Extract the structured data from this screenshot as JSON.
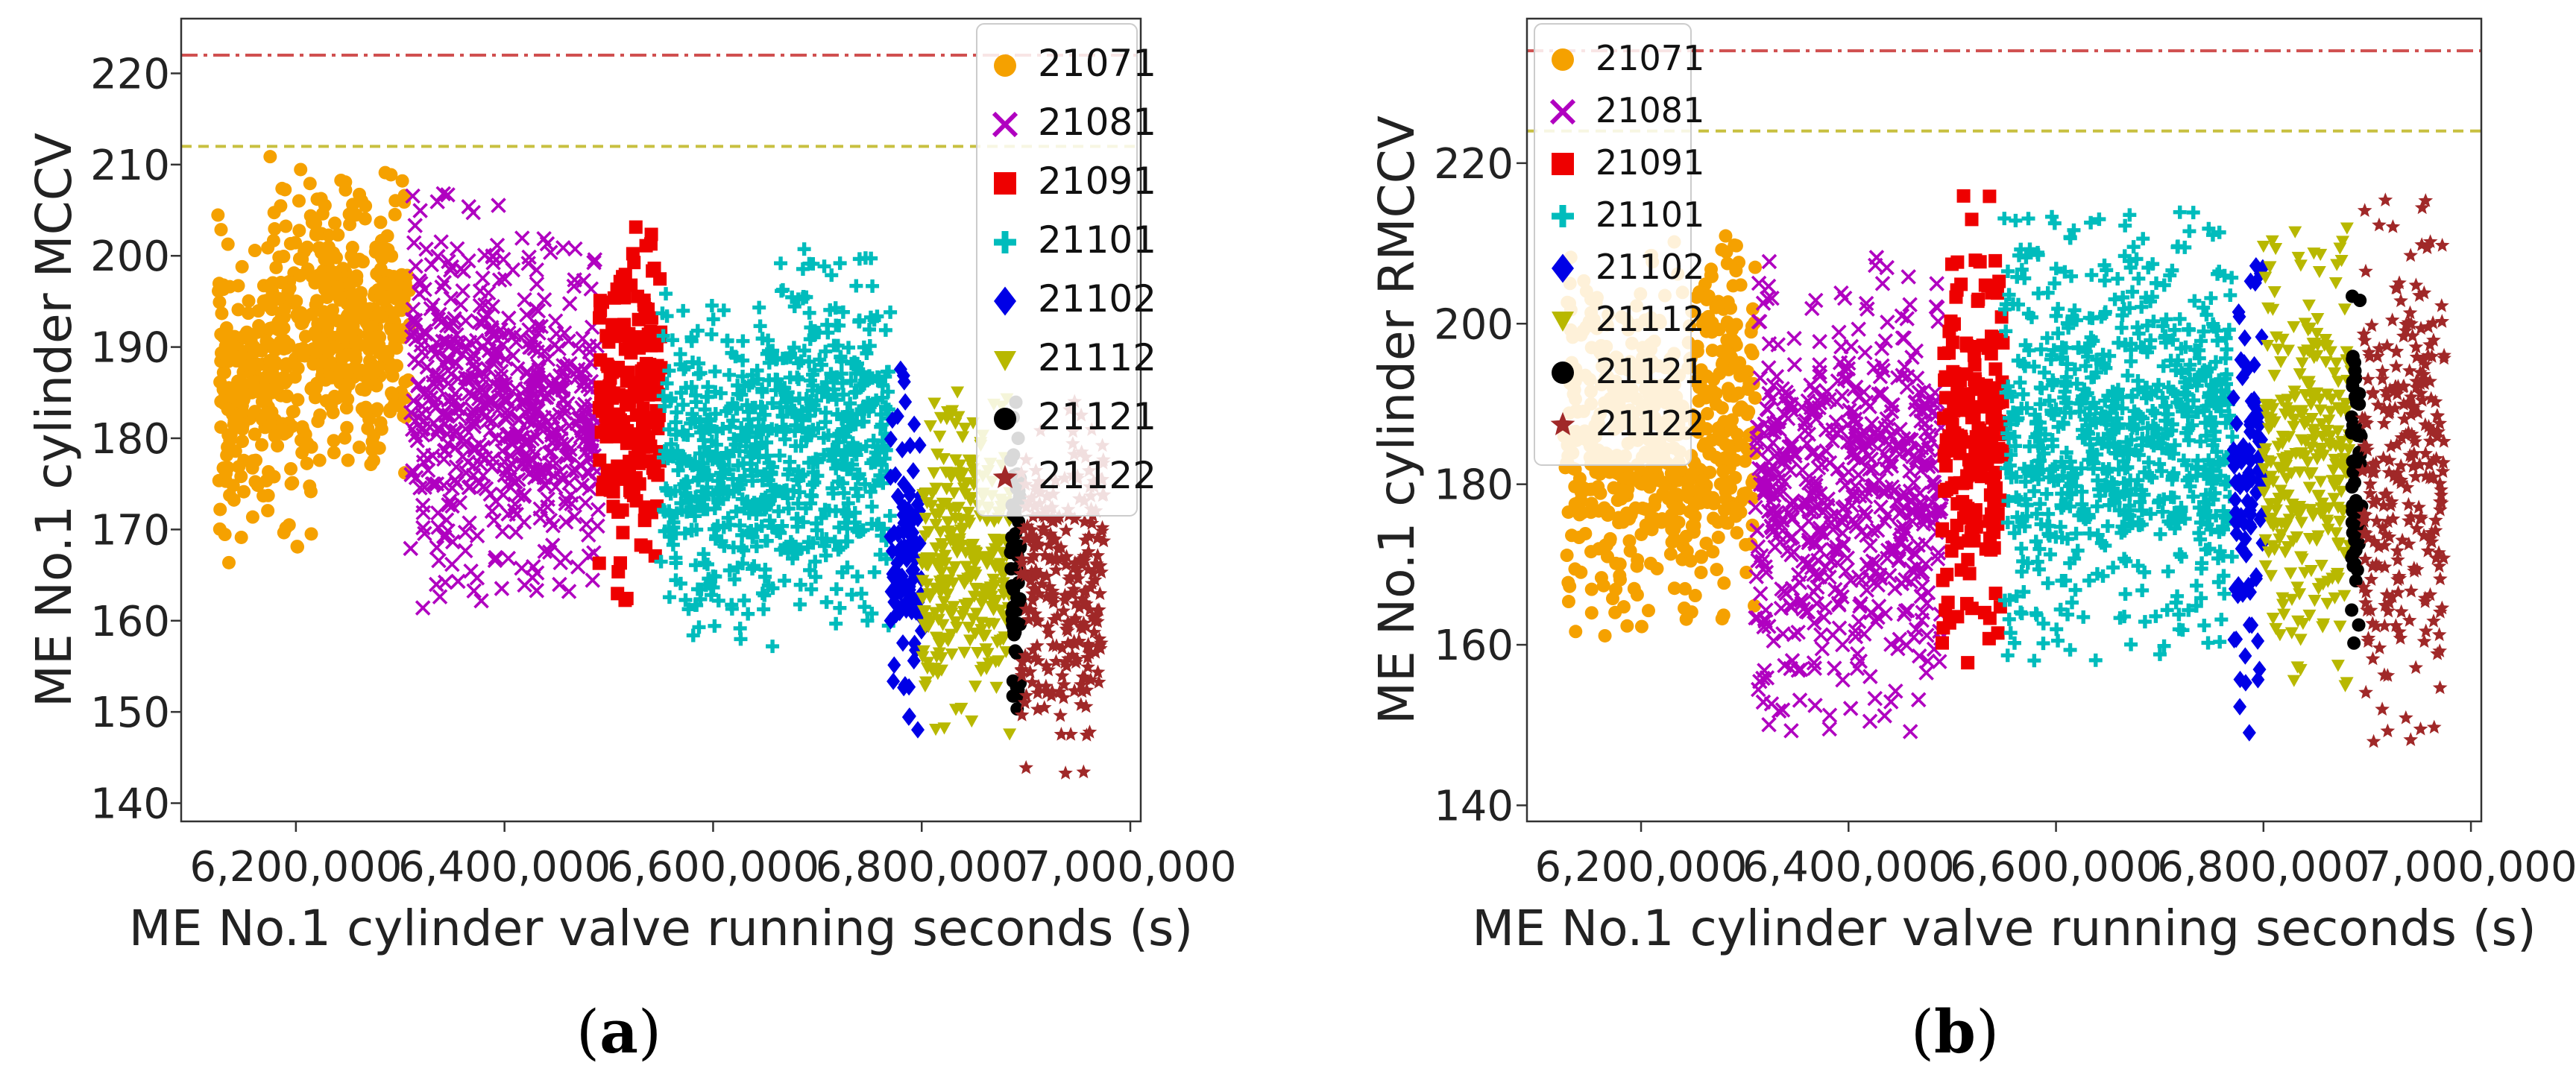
{
  "colors": {
    "21071": "#f5a100",
    "21081": "#b000c0",
    "21091": "#ee0000",
    "21101": "#00bcbc",
    "21102": "#0000e6",
    "21112": "#b8b800",
    "21121": "#000000",
    "21122": "#a02828",
    "red_line": "#d05050",
    "yellow_line": "#c8c040"
  },
  "chart_data": [
    {
      "type": "scatter",
      "panel": "a",
      "caption_open": "(",
      "caption_letter": "a",
      "caption_close": ")",
      "xlabel": "ME No.1 cylinder valve running seconds (s)",
      "ylabel": "ME No.1 cylinder MCCV",
      "xlim": [
        6090000,
        7010000
      ],
      "ylim": [
        138,
        226
      ],
      "x_ticks": [
        6200000,
        6400000,
        6600000,
        6800000,
        7000000
      ],
      "x_tick_labels": [
        "6,200,000",
        "6,400,000",
        "6,600,000",
        "6,800,000",
        "7,000,000"
      ],
      "y_ticks": [
        140,
        150,
        160,
        170,
        180,
        190,
        200,
        210,
        220
      ],
      "y_tick_labels": [
        "140",
        "150",
        "160",
        "170",
        "180",
        "190",
        "200",
        "210",
        "220"
      ],
      "legend_position": "top-right",
      "reference_lines": [
        {
          "style": "dash-dot",
          "color_key": "red_line",
          "y": 222
        },
        {
          "style": "dashed",
          "color_key": "yellow_line",
          "y": 212
        }
      ],
      "series": [
        {
          "name": "21071",
          "marker": "circle",
          "x_range": [
            6125000,
            6310000
          ],
          "segments": [
            [
              6125000,
              6175000,
              166,
              205
            ],
            [
              6175000,
              6215000,
              167,
              212
            ],
            [
              6215000,
              6310000,
              176,
              210
            ]
          ]
        },
        {
          "name": "21081",
          "marker": "x",
          "x_range": [
            6310000,
            6490000
          ],
          "segments": [
            [
              6310000,
              6400000,
              161,
              207
            ],
            [
              6400000,
              6490000,
              163,
              202
            ]
          ]
        },
        {
          "name": "21091",
          "marker": "square",
          "x_range": [
            6490000,
            6550000
          ],
          "segments": [
            [
              6490000,
              6550000,
              162,
              206
            ]
          ]
        },
        {
          "name": "21101",
          "marker": "plus",
          "x_range": [
            6550000,
            6770000
          ],
          "segments": [
            [
              6550000,
              6660000,
              157,
              196
            ],
            [
              6660000,
              6770000,
              159,
              201
            ]
          ]
        },
        {
          "name": "21102",
          "marker": "diamond",
          "x_range": [
            6770000,
            6800000
          ],
          "segments": [
            [
              6770000,
              6800000,
              148,
              188
            ]
          ]
        },
        {
          "name": "21112",
          "marker": "triangle-down",
          "x_range": [
            6800000,
            6885000
          ],
          "segments": [
            [
              6800000,
              6885000,
              147,
              186
            ]
          ]
        },
        {
          "name": "21121",
          "marker": "circle",
          "x_range": [
            6885000,
            6895000
          ],
          "segments": [
            [
              6885000,
              6895000,
              145,
              188
            ]
          ]
        },
        {
          "name": "21122",
          "marker": "star",
          "x_range": [
            6895000,
            6975000
          ],
          "segments": [
            [
              6895000,
              6975000,
              143,
              185
            ]
          ]
        }
      ]
    },
    {
      "type": "scatter",
      "panel": "b",
      "caption_open": "(",
      "caption_letter": "b",
      "caption_close": ")",
      "xlabel": "ME No.1 cylinder valve running seconds (s)",
      "ylabel": "ME No.1 cylinder RMCCV",
      "xlim": [
        6090000,
        7010000
      ],
      "ylim": [
        138,
        238
      ],
      "x_ticks": [
        6200000,
        6400000,
        6600000,
        6800000,
        7000000
      ],
      "x_tick_labels": [
        "6,200,000",
        "6,400,000",
        "6,600,000",
        "6,800,000",
        "7,000,000"
      ],
      "y_ticks": [
        140,
        160,
        180,
        200,
        220
      ],
      "y_tick_labels": [
        "140",
        "160",
        "180",
        "200",
        "220"
      ],
      "legend_position": "top-left",
      "reference_lines": [
        {
          "style": "dash-dot",
          "color_key": "red_line",
          "y": 234
        },
        {
          "style": "dashed",
          "color_key": "yellow_line",
          "y": 224
        }
      ],
      "series": [
        {
          "name": "21071",
          "marker": "circle",
          "x_range": [
            6125000,
            6310000
          ],
          "segments": [
            [
              6125000,
              6310000,
              161,
              211
            ]
          ]
        },
        {
          "name": "21081",
          "marker": "x",
          "x_range": [
            6310000,
            6490000
          ],
          "segments": [
            [
              6310000,
              6490000,
              149,
              209
            ]
          ]
        },
        {
          "name": "21091",
          "marker": "square",
          "x_range": [
            6490000,
            6550000
          ],
          "segments": [
            [
              6490000,
              6550000,
              157,
              216
            ]
          ]
        },
        {
          "name": "21101",
          "marker": "plus",
          "x_range": [
            6550000,
            6770000
          ],
          "segments": [
            [
              6550000,
              6770000,
              158,
              214
            ]
          ]
        },
        {
          "name": "21102",
          "marker": "diamond",
          "x_range": [
            6770000,
            6800000
          ],
          "segments": [
            [
              6770000,
              6800000,
              149,
              214
            ]
          ]
        },
        {
          "name": "21112",
          "marker": "triangle-down",
          "x_range": [
            6800000,
            6885000
          ],
          "segments": [
            [
              6800000,
              6885000,
              154,
              212
            ]
          ]
        },
        {
          "name": "21121",
          "marker": "circle",
          "x_range": [
            6885000,
            6895000
          ],
          "segments": [
            [
              6885000,
              6895000,
              159,
              206
            ]
          ]
        },
        {
          "name": "21122",
          "marker": "star",
          "x_range": [
            6895000,
            6975000
          ],
          "segments": [
            [
              6895000,
              6975000,
              146,
              216
            ]
          ]
        }
      ]
    }
  ]
}
